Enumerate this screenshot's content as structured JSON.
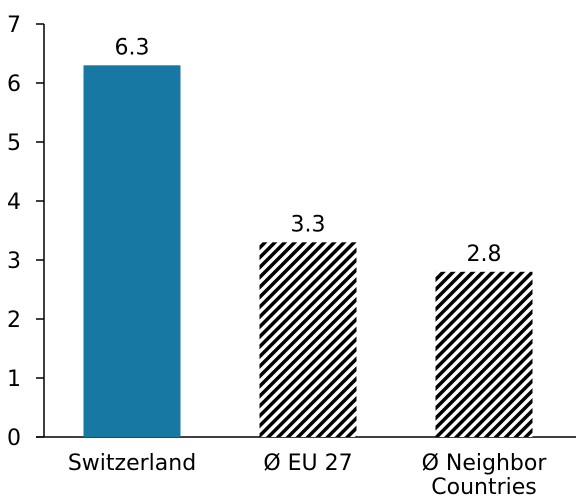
{
  "chart_data": {
    "type": "bar",
    "title": "",
    "xlabel": "",
    "ylabel": "",
    "ylim": [
      0,
      7
    ],
    "yticks": [
      "0",
      "1",
      "2",
      "3",
      "4",
      "5",
      "6",
      "7"
    ],
    "categories": [
      [
        "Switzerland"
      ],
      [
        "Ø EU 27"
      ],
      [
        "Ø Neighbor",
        "Countries"
      ]
    ],
    "values": [
      6.3,
      3.3,
      2.8
    ],
    "value_labels": [
      "6.3",
      "3.3",
      "2.8"
    ],
    "bar_styles": [
      "solid",
      "hatched",
      "hatched"
    ],
    "grid": false,
    "legend": "none"
  },
  "colors": {
    "solid_bar": "#1778a4",
    "hatch": "#000000",
    "axis": "#000000"
  }
}
